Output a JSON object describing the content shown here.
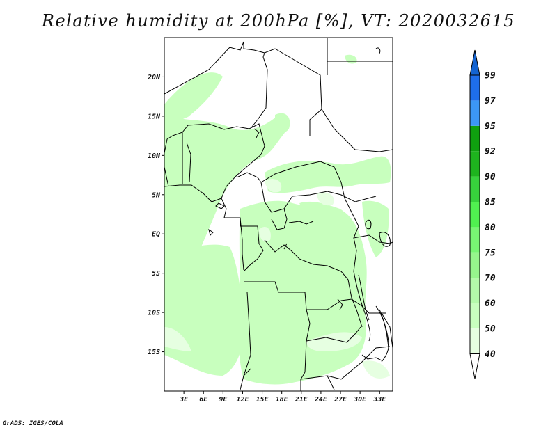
{
  "title": "Relative humidity at 200hPa [%], VT: 2020032615",
  "credit": "GrADS: IGES/COLA",
  "map": {
    "lon_range": [
      0,
      35
    ],
    "lat_range": [
      -20,
      25
    ],
    "lat_ticks": [
      {
        "value": 20,
        "label": "20N"
      },
      {
        "value": 15,
        "label": "15N"
      },
      {
        "value": 10,
        "label": "10N"
      },
      {
        "value": 5,
        "label": "5N"
      },
      {
        "value": 0,
        "label": "EQ"
      },
      {
        "value": -5,
        "label": "5S"
      },
      {
        "value": -10,
        "label": "10S"
      },
      {
        "value": -15,
        "label": "15S"
      }
    ],
    "lon_ticks": [
      {
        "value": 3,
        "label": "3E"
      },
      {
        "value": 6,
        "label": "6E"
      },
      {
        "value": 9,
        "label": "9E"
      },
      {
        "value": 12,
        "label": "12E"
      },
      {
        "value": 15,
        "label": "15E"
      },
      {
        "value": 18,
        "label": "18E"
      },
      {
        "value": 21,
        "label": "21E"
      },
      {
        "value": 24,
        "label": "24E"
      },
      {
        "value": 27,
        "label": "27E"
      },
      {
        "value": 30,
        "label": "30E"
      },
      {
        "value": 33,
        "label": "33E"
      }
    ]
  },
  "colorbar": {
    "levels": [
      {
        "label": "40",
        "color": "#ffffff"
      },
      {
        "label": "50",
        "color": "#e6ffe1"
      },
      {
        "label": "60",
        "color": "#c8ffbe"
      },
      {
        "label": "70",
        "color": "#b4faaa"
      },
      {
        "label": "75",
        "color": "#96f58c"
      },
      {
        "label": "80",
        "color": "#78f573"
      },
      {
        "label": "85",
        "color": "#50f050"
      },
      {
        "label": "90",
        "color": "#37d23c"
      },
      {
        "label": "92",
        "color": "#1eb41e"
      },
      {
        "label": "95",
        "color": "#0fa00f"
      },
      {
        "label": "97",
        "color": "#3c97f5"
      },
      {
        "label": "99",
        "color": "#1e6eeb"
      }
    ],
    "under_color": "#ffffff",
    "over_color": "#1464d2"
  }
}
